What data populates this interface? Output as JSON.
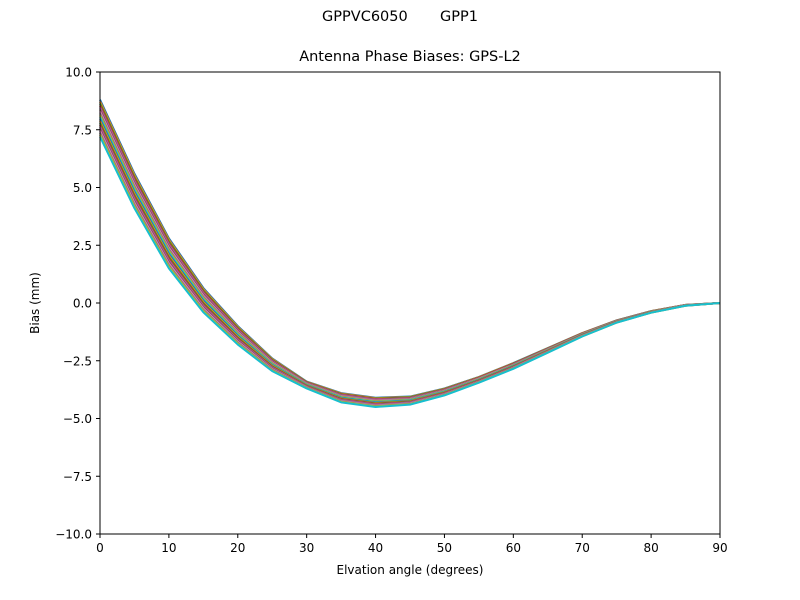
{
  "figure": {
    "suptitle": "GPPVC6050       GPP1",
    "title": "Antenna Phase Biases: GPS-L2",
    "xlabel": "Elvation angle (degrees)",
    "ylabel": "Bias (mm)"
  },
  "chart_data": {
    "type": "line",
    "title": "Antenna Phase Biases: GPS-L2",
    "suptitle": "GPPVC6050       GPP1",
    "xlabel": "Elvation angle (degrees)",
    "ylabel": "Bias (mm)",
    "xlim": [
      0,
      90
    ],
    "ylim": [
      -10,
      10
    ],
    "xticks": [
      0,
      10,
      20,
      30,
      40,
      50,
      60,
      70,
      80,
      90
    ],
    "xtick_labels": [
      "0",
      "10",
      "20",
      "30",
      "40",
      "50",
      "60",
      "70",
      "80",
      "90"
    ],
    "yticks": [
      10,
      7.5,
      5,
      2.5,
      0,
      -2.5,
      -5,
      -7.5,
      -10
    ],
    "ytick_labels": [
      "10.0",
      "7.5",
      "5.0",
      "2.5",
      "0.0",
      "−2.5",
      "−5.0",
      "−7.5",
      "−10.0"
    ],
    "grid": false,
    "legend": null,
    "x": [
      0,
      5,
      10,
      15,
      20,
      25,
      30,
      35,
      40,
      45,
      50,
      55,
      60,
      65,
      70,
      75,
      80,
      85,
      90
    ],
    "envelope": {
      "upper": [
        8.8,
        5.6,
        2.8,
        0.65,
        -1.0,
        -2.4,
        -3.4,
        -3.9,
        -4.1,
        -4.05,
        -3.7,
        -3.2,
        -2.6,
        -1.95,
        -1.3,
        -0.75,
        -0.35,
        -0.08,
        0.0
      ],
      "lower": [
        7.2,
        4.1,
        1.5,
        -0.4,
        -1.8,
        -2.95,
        -3.7,
        -4.3,
        -4.5,
        -4.4,
        -4.0,
        -3.45,
        -2.85,
        -2.15,
        -1.45,
        -0.85,
        -0.42,
        -0.12,
        0.0
      ]
    },
    "series_count": 20,
    "series_note": "Many overlapping curves (one per azimuth), spread evenly between envelope.upper and envelope.lower; colors cycle through palette",
    "palette": [
      "#1f77b4",
      "#ff7f0e",
      "#2ca02c",
      "#d62728",
      "#9467bd",
      "#8c564b",
      "#e377c2",
      "#7f7f7f",
      "#bcbd22",
      "#17becf"
    ]
  }
}
